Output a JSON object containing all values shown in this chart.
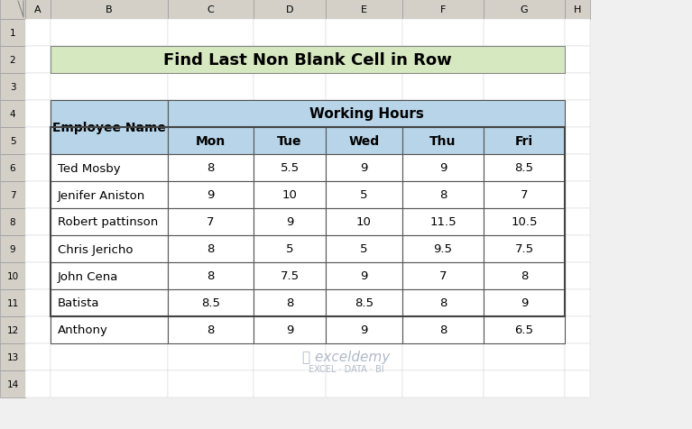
{
  "title": "Find Last Non Blank Cell in Row",
  "title_bg": "#d6e8c0",
  "header1": "Working Hours",
  "header2": [
    "Mon",
    "Tue",
    "Wed",
    "Thu",
    "Fri"
  ],
  "col0_header": "Employee Name",
  "employees": [
    "Ted Mosby",
    "Jenifer Aniston",
    "Robert pattinson",
    "Chris Jericho",
    "John Cena",
    "Batista",
    "Anthony"
  ],
  "data": [
    [
      8,
      5.5,
      9,
      9,
      8.5
    ],
    [
      9,
      10,
      5,
      8,
      7
    ],
    [
      7,
      9,
      10,
      11.5,
      10.5
    ],
    [
      8,
      5,
      5,
      9.5,
      7.5
    ],
    [
      8,
      7.5,
      9,
      7,
      8
    ],
    [
      8.5,
      8,
      8.5,
      8,
      9
    ],
    [
      8,
      9,
      9,
      8,
      6.5
    ]
  ],
  "header_bg": "#b8d4e8",
  "row_bg": "#ffffff",
  "grid_color": "#555555",
  "text_color": "#000000",
  "outer_bg": "#f0f0f0",
  "watermark_color": "#c0c8d8",
  "excel_bg": "#e8f0f8",
  "row_labels": [
    "1",
    "2",
    "3",
    "4",
    "5",
    "6",
    "7",
    "8",
    "9",
    "10",
    "11",
    "12",
    "13",
    "14"
  ],
  "col_labels": [
    "A",
    "B",
    "C",
    "D",
    "E",
    "F",
    "G",
    "H"
  ]
}
